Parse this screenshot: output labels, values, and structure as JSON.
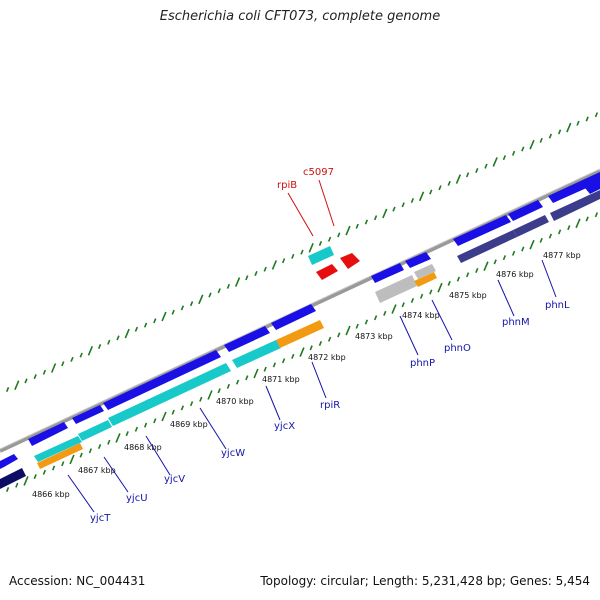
{
  "title": "Escherichia coli CFT073, complete genome",
  "footer": {
    "accession": "Accession: NC_004431",
    "summary": "Topology: circular; Length: 5,231,428 bp; Genes: 5,454"
  },
  "kbp_labels": [
    "4866 kbp",
    "4867 kbp",
    "4868 kbp",
    "4869 kbp",
    "4870 kbp",
    "4871 kbp",
    "4872 kbp",
    "4873 kbp",
    "4874 kbp",
    "4875 kbp",
    "4876 kbp",
    "4877 kbp"
  ],
  "gene_labels": [
    "yjcT",
    "yjcU",
    "yjcV",
    "yjcW",
    "yjcX",
    "rpiR",
    "phnP",
    "phnO",
    "phnM",
    "phnL",
    "rpiB",
    "c5097"
  ],
  "colors": {
    "backbone": "#888888",
    "forward_cds": "#1a10e6",
    "reverse_cds": "#3c3c8c",
    "cds_cyan": "#17c9c9",
    "cds_orange": "#f29a12",
    "cds_red": "#e60f0f",
    "cds_grey": "#bdbdbd",
    "ticks": "#1f7a1f"
  }
}
